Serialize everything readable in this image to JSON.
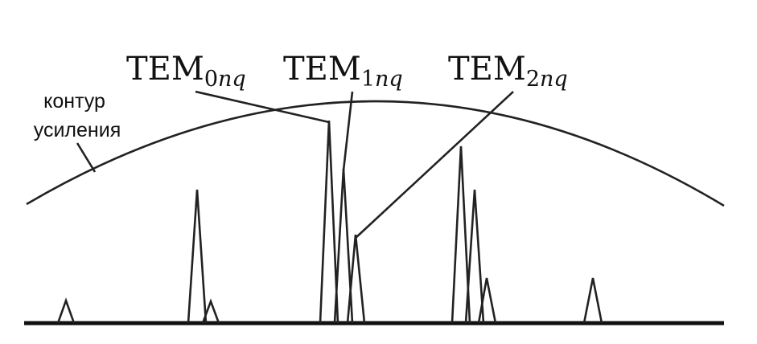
{
  "gain_contour_label": [
    "контур",
    "усиления"
  ],
  "mode_labels": [
    {
      "base": "TEM",
      "index": "0",
      "vars": "nq"
    },
    {
      "base": "TEM",
      "index": "1",
      "vars": "nq"
    },
    {
      "base": "TEM",
      "index": "2",
      "vars": "nq"
    }
  ],
  "colors": {
    "stroke": "#222222",
    "background": "#ffffff"
  }
}
